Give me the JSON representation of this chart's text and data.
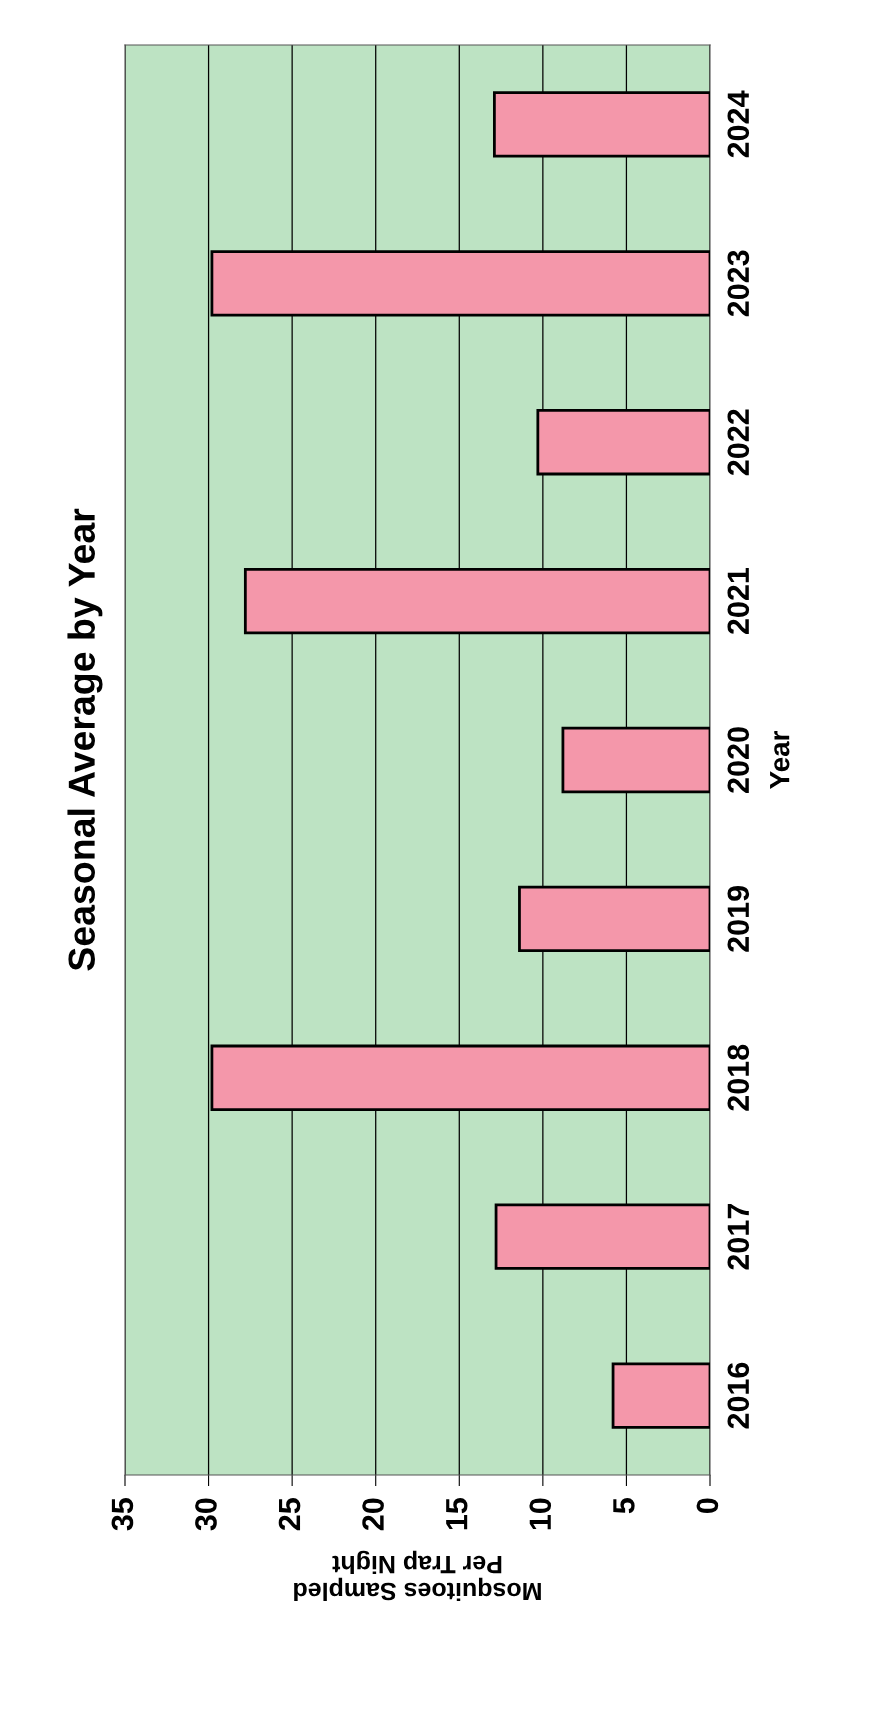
{
  "chart_data": {
    "type": "bar",
    "orientation": "horizontal",
    "title": "Seasonal Average by Year",
    "xlabel": "Mosquitoes Sampled\nPer Trap Night",
    "ylabel": "Year",
    "categories": [
      "2024",
      "2023",
      "2022",
      "2021",
      "2020",
      "2019",
      "2018",
      "2017",
      "2016"
    ],
    "values": [
      12.9,
      29.8,
      10.3,
      27.8,
      8.8,
      11.4,
      29.8,
      12.8,
      5.8
    ],
    "color": "#f497aa",
    "xlim": [
      35,
      0
    ],
    "xticks": [
      0,
      5,
      10,
      15,
      20,
      25,
      30,
      35
    ],
    "grid": "x",
    "legend": false
  }
}
